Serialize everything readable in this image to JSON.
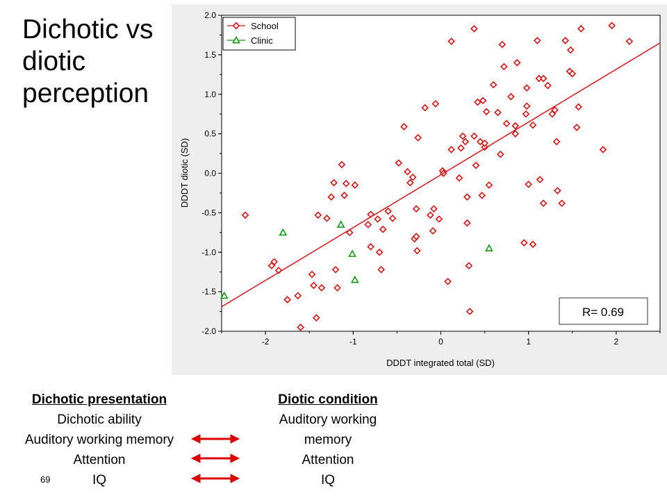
{
  "slide": {
    "title": "Dichotic vs diotic perception",
    "page_number": "69"
  },
  "colors": {
    "school": "#dd1111",
    "clinic": "#119911",
    "fit_line": "#dd2222",
    "chart_background": "#eeeeee",
    "arrow": "#dd0000"
  },
  "chart_data": {
    "type": "scatter",
    "xlabel": "DDDT integrated total (SD)",
    "ylabel": "DDDT diotic (SD)",
    "xlim": [
      -2.5,
      2.5
    ],
    "ylim": [
      -2.0,
      2.0
    ],
    "x_ticks": [
      -2,
      -1,
      0,
      1,
      2
    ],
    "x_tick_labels": [
      "-2",
      "-1",
      "0",
      "1",
      "2"
    ],
    "y_ticks": [
      -2.0,
      -1.5,
      -1.0,
      -0.5,
      0.0,
      0.5,
      1.0,
      1.5,
      2.0
    ],
    "y_tick_labels": [
      "-2.0",
      "-1.5",
      "-1.0",
      "-0.5",
      "0.0",
      "0.5",
      "1.0",
      "1.5",
      "2.0"
    ],
    "legend_position": "top-left",
    "annotation": "R= 0.69",
    "fit_line": {
      "x": [
        -2.5,
        2.5
      ],
      "y": [
        -1.69,
        1.65
      ]
    },
    "series": [
      {
        "name": "School",
        "marker": "diamond",
        "points": [
          [
            -2.23,
            -0.53
          ],
          [
            -1.93,
            -1.17
          ],
          [
            -1.9,
            -1.12
          ],
          [
            -1.85,
            -1.23
          ],
          [
            -1.75,
            -1.6
          ],
          [
            -1.63,
            -1.55
          ],
          [
            -1.6,
            -1.95
          ],
          [
            -1.47,
            -1.28
          ],
          [
            -1.45,
            -1.42
          ],
          [
            -1.42,
            -1.83
          ],
          [
            -1.4,
            -0.53
          ],
          [
            -1.36,
            -1.45
          ],
          [
            -1.3,
            -0.57
          ],
          [
            -1.25,
            -0.3
          ],
          [
            -1.22,
            -0.12
          ],
          [
            -1.2,
            -1.22
          ],
          [
            -1.18,
            -1.45
          ],
          [
            -1.13,
            0.11
          ],
          [
            -1.1,
            -0.28
          ],
          [
            -1.08,
            -0.13
          ],
          [
            -1.04,
            -0.75
          ],
          [
            -0.98,
            -0.15
          ],
          [
            -0.83,
            -0.65
          ],
          [
            -0.8,
            -0.52
          ],
          [
            -0.8,
            -0.93
          ],
          [
            -0.72,
            -0.58
          ],
          [
            -0.7,
            -1.0
          ],
          [
            -0.68,
            -1.22
          ],
          [
            -0.66,
            -0.71
          ],
          [
            -0.6,
            -0.48
          ],
          [
            -0.55,
            -0.57
          ],
          [
            -0.48,
            0.13
          ],
          [
            -0.42,
            0.59
          ],
          [
            -0.38,
            0.02
          ],
          [
            -0.35,
            -0.12
          ],
          [
            -0.32,
            -0.05
          ],
          [
            -0.3,
            -0.83
          ],
          [
            -0.28,
            -0.8
          ],
          [
            -0.28,
            -0.45
          ],
          [
            -0.27,
            -0.98
          ],
          [
            -0.26,
            0.45
          ],
          [
            -0.18,
            0.83
          ],
          [
            -0.12,
            -0.53
          ],
          [
            -0.09,
            -0.73
          ],
          [
            -0.08,
            -0.45
          ],
          [
            -0.06,
            0.88
          ],
          [
            -0.02,
            -0.58
          ],
          [
            0.02,
            0.03
          ],
          [
            0.03,
            0.0
          ],
          [
            0.08,
            -1.37
          ],
          [
            0.12,
            0.3
          ],
          [
            0.12,
            1.67
          ],
          [
            0.21,
            -0.06
          ],
          [
            0.23,
            0.32
          ],
          [
            0.25,
            0.47
          ],
          [
            0.28,
            0.4
          ],
          [
            0.3,
            -0.3
          ],
          [
            0.3,
            -0.63
          ],
          [
            0.32,
            -1.17
          ],
          [
            0.33,
            -1.75
          ],
          [
            0.38,
            1.83
          ],
          [
            0.38,
            0.47
          ],
          [
            0.4,
            0.1
          ],
          [
            0.42,
            0.9
          ],
          [
            0.45,
            0.4
          ],
          [
            0.47,
            -0.28
          ],
          [
            0.48,
            0.92
          ],
          [
            0.5,
            0.33
          ],
          [
            0.5,
            0.38
          ],
          [
            0.52,
            0.78
          ],
          [
            0.55,
            -0.15
          ],
          [
            0.6,
            1.12
          ],
          [
            0.65,
            0.77
          ],
          [
            0.68,
            0.24
          ],
          [
            0.7,
            1.63
          ],
          [
            0.72,
            1.35
          ],
          [
            0.75,
            0.63
          ],
          [
            0.8,
            0.97
          ],
          [
            0.85,
            0.5
          ],
          [
            0.85,
            0.6
          ],
          [
            0.87,
            1.4
          ],
          [
            0.95,
            -0.88
          ],
          [
            0.97,
            0.75
          ],
          [
            0.98,
            1.08
          ],
          [
            0.98,
            0.85
          ],
          [
            1.0,
            -0.14
          ],
          [
            1.05,
            -0.9
          ],
          [
            1.05,
            0.61
          ],
          [
            1.1,
            1.68
          ],
          [
            1.12,
            1.2
          ],
          [
            1.13,
            -0.08
          ],
          [
            1.17,
            1.2
          ],
          [
            1.17,
            -0.38
          ],
          [
            1.22,
            1.11
          ],
          [
            1.27,
            0.75
          ],
          [
            1.3,
            0.8
          ],
          [
            1.32,
            0.4
          ],
          [
            1.33,
            -0.22
          ],
          [
            1.38,
            -0.38
          ],
          [
            1.42,
            1.68
          ],
          [
            1.47,
            1.29
          ],
          [
            1.48,
            1.56
          ],
          [
            1.5,
            1.26
          ],
          [
            1.55,
            0.58
          ],
          [
            1.57,
            0.84
          ],
          [
            1.6,
            1.83
          ],
          [
            1.85,
            0.3
          ],
          [
            1.95,
            1.87
          ],
          [
            2.15,
            1.67
          ]
        ]
      },
      {
        "name": "Clinic",
        "marker": "triangle",
        "points": [
          [
            -2.47,
            -1.55
          ],
          [
            -1.8,
            -0.75
          ],
          [
            -1.14,
            -0.65
          ],
          [
            -1.01,
            -1.02
          ],
          [
            -0.98,
            -1.35
          ],
          [
            0.55,
            -0.95
          ]
        ]
      }
    ]
  },
  "columns": {
    "left": {
      "heading": "Dichotic presentation",
      "items": [
        "Dichotic ability",
        "Auditory working memory",
        "Attention",
        "IQ"
      ]
    },
    "right": {
      "heading": "Diotic condition",
      "items": [
        "Auditory working memory",
        "Attention",
        "IQ"
      ]
    }
  }
}
